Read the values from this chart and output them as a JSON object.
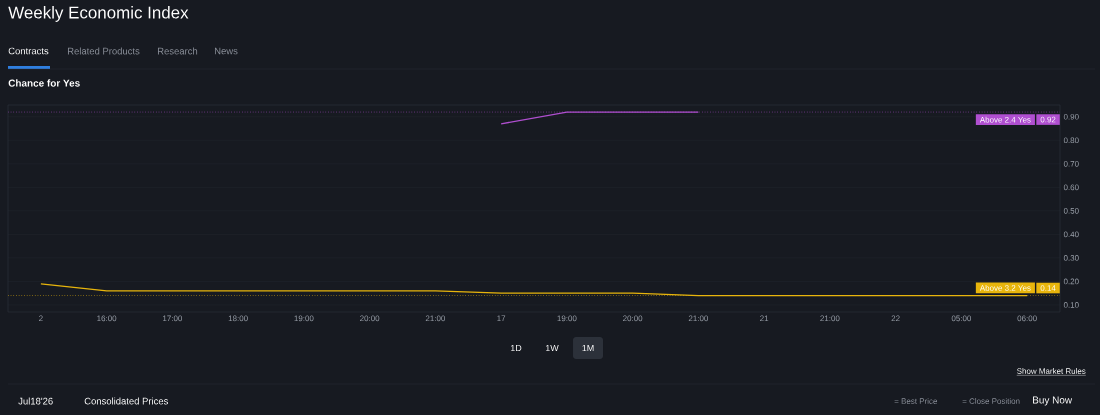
{
  "chart_data": {
    "type": "line",
    "title": "Weekly Economic Index",
    "subtitle": "Chance for Yes",
    "categories": [
      "2",
      "16:00",
      "17:00",
      "18:00",
      "19:00",
      "20:00",
      "21:00",
      "17",
      "19:00",
      "20:00",
      "21:00",
      "21",
      "21:00",
      "22",
      "05:00",
      "06:00"
    ],
    "series": [
      {
        "name": "Above 2.4 Yes",
        "color": "#b04fd0",
        "values": [
          null,
          null,
          null,
          null,
          null,
          null,
          null,
          0.87,
          0.92,
          0.92,
          0.92,
          null,
          null,
          null,
          null,
          null
        ]
      },
      {
        "name": "Above 3.2 Yes",
        "color": "#e8b50c",
        "values": [
          0.19,
          0.16,
          0.16,
          0.16,
          0.16,
          0.16,
          0.16,
          0.15,
          0.15,
          0.15,
          0.14,
          0.14,
          0.14,
          0.14,
          0.14,
          0.14
        ]
      }
    ],
    "ylim": [
      0.07,
      0.95
    ],
    "yticks": [
      {
        "value": 0.1,
        "label": "0.10"
      },
      {
        "value": 0.2,
        "label": "0.20"
      },
      {
        "value": 0.3,
        "label": "0.30"
      },
      {
        "value": 0.4,
        "label": "0.40"
      },
      {
        "value": 0.5,
        "label": "0.50"
      },
      {
        "value": 0.6,
        "label": "0.60"
      },
      {
        "value": 0.7,
        "label": "0.70"
      },
      {
        "value": 0.8,
        "label": "0.80"
      },
      {
        "value": 0.9,
        "label": "0.90"
      }
    ],
    "grid": "y",
    "legend": "right",
    "marker": "none",
    "line_style": "solid",
    "ref_lines": [
      {
        "axis": "y",
        "value": 0.92,
        "label": "0.92",
        "color": "#b04fd0",
        "line_style": "dotted"
      },
      {
        "axis": "y",
        "value": 0.14,
        "label": "0.14",
        "color": "#e8b50c",
        "line_style": "dotted"
      }
    ],
    "annotations": [
      "Contracts",
      "Related Products",
      "Research",
      "News",
      "1D",
      "1W",
      "1M",
      "Show Market Rules",
      "Jul18'26",
      "Consolidated Prices",
      "= Best Price",
      "= Close Position",
      "Buy Now"
    ]
  }
}
